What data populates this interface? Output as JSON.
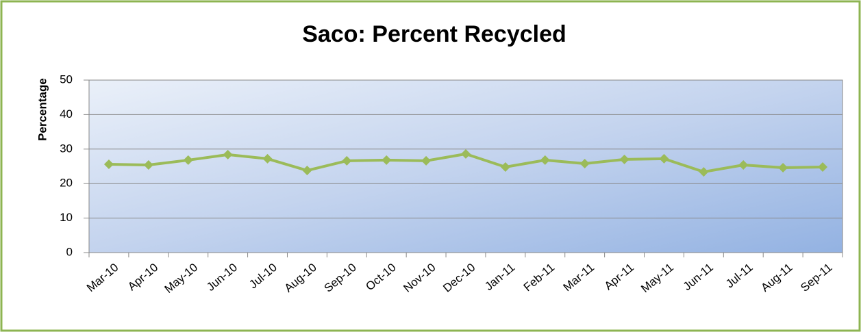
{
  "chart_data": {
    "type": "line",
    "title": "Saco: Percent Recycled",
    "y_label": "Percentage",
    "categories": [
      "Mar-10",
      "Apr-10",
      "May-10",
      "Jun-10",
      "Jul-10",
      "Aug-10",
      "Sep-10",
      "Oct-10",
      "Nov-10",
      "Dec-10",
      "Jan-11",
      "Feb-11",
      "Mar-11",
      "Apr-11",
      "May-11",
      "Jun-11",
      "Jul-11",
      "Aug-11",
      "Sep-11"
    ],
    "values": [
      25.6,
      25.4,
      26.8,
      28.4,
      27.2,
      23.8,
      26.6,
      26.8,
      26.6,
      28.6,
      24.8,
      26.8,
      25.8,
      27.0,
      27.2,
      23.4,
      25.4,
      24.6,
      24.8
    ],
    "color": "#9bbb59",
    "ylim": [
      0,
      50
    ],
    "yticks": [
      0,
      10,
      20,
      30,
      40,
      50
    ],
    "grid": true
  }
}
